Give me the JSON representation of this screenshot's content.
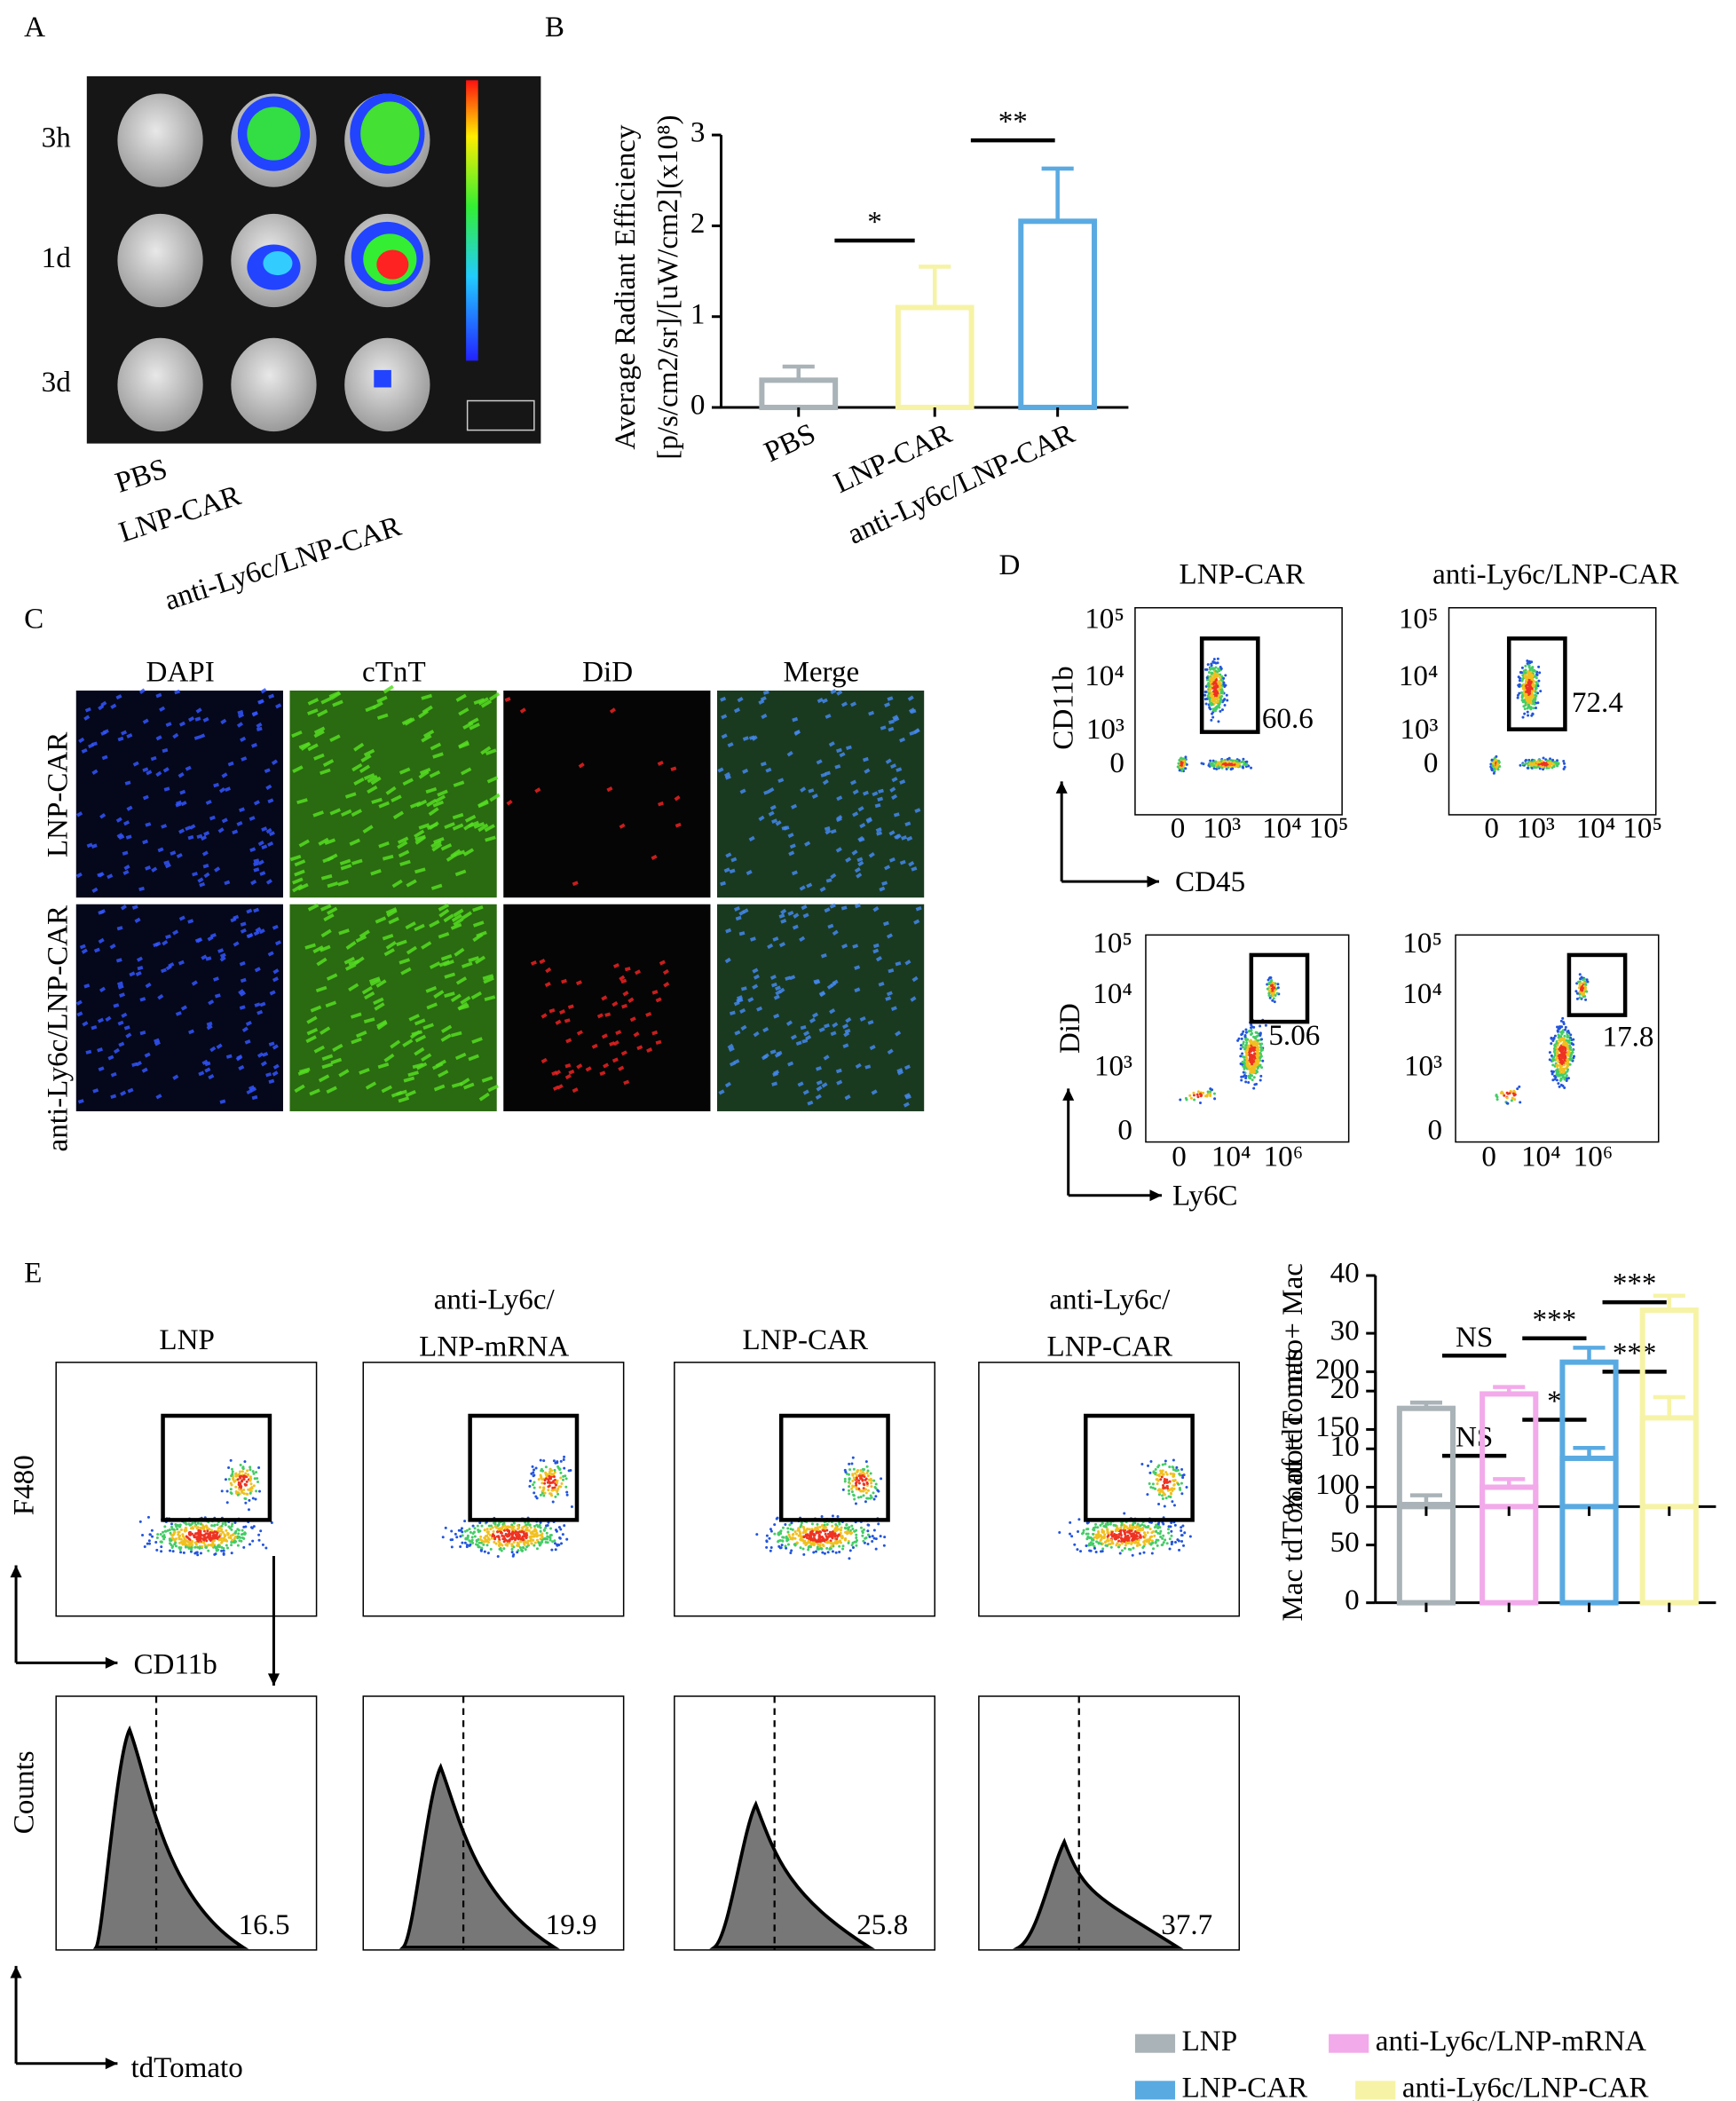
{
  "panel_labels": [
    "A",
    "B",
    "C",
    "D",
    "E"
  ],
  "panel_a": {
    "rows": [
      "3h",
      "1d",
      "3d"
    ],
    "columns": [
      "PBS",
      "LNP-CAR",
      "anti-Ly6c/LNP-CAR"
    ]
  },
  "panel_c": {
    "columns": [
      "DAPI",
      "cTnT",
      "DiD",
      "Merge"
    ],
    "rows": [
      "LNP-CAR",
      "anti-Ly6c/LNP-CAR"
    ]
  },
  "panel_d": {
    "columns": [
      "LNP-CAR",
      "anti-Ly6c/LNP-CAR"
    ],
    "top": {
      "y_label": "CD11b",
      "x_label": "CD45",
      "yticks": [
        "10⁵",
        "10⁴",
        "10³",
        "0"
      ],
      "xticks": [
        "0",
        "10³",
        "10⁴",
        "10⁵"
      ],
      "gates": [
        "60.6",
        "72.4"
      ]
    },
    "bottom": {
      "y_label": "DiD",
      "x_label": "Ly6C",
      "yticks": [
        "10⁵",
        "10⁴",
        "10³",
        "0"
      ],
      "xticks": [
        "0",
        "10⁴",
        "10⁶"
      ],
      "gates": [
        "5.06",
        "17.8"
      ]
    }
  },
  "panel_e": {
    "titles": [
      [
        "LNP"
      ],
      [
        "anti-Ly6c/",
        "LNP-mRNA"
      ],
      [
        "LNP-CAR"
      ],
      [
        "anti-Ly6c/",
        "LNP-CAR"
      ]
    ],
    "dot_y_label": "F480",
    "dot_x_label": "CD11b",
    "hist_y_label": "Counts",
    "hist_x_label": "tdTomato",
    "percents": [
      "16.5",
      "19.9",
      "25.8",
      "37.7"
    ]
  },
  "chart_data": [
    {
      "type": "bar",
      "y_label": [
        "Average  Radiant  Efficiency",
        "[p/s/cm2/sr]/[uW/cm2](x10⁸)"
      ],
      "categories": [
        "PBS",
        "LNP-CAR",
        "anti-Ly6c/LNP-CAR"
      ],
      "values": [
        0.3,
        1.1,
        2.05
      ],
      "errors": [
        0.15,
        0.45,
        0.58
      ],
      "colors": [
        "#a9b3b8",
        "#f6f3a6",
        "#5aaae2"
      ],
      "ylim": [
        0,
        3
      ],
      "yticks": [
        0,
        1,
        2,
        3
      ],
      "annotations": [
        "*",
        "**"
      ]
    },
    {
      "type": "bar",
      "y_label": "Mac tdTomato+ counts",
      "categories": [
        null,
        null,
        null,
        null
      ],
      "values": [
        85,
        100,
        125,
        160
      ],
      "errors": [
        8,
        7,
        9,
        18
      ],
      "colors": [
        "#a9b3b8",
        "#f2aaea",
        "#5aaae2",
        "#f6f3a6"
      ],
      "ylim": [
        0,
        200
      ],
      "yticks": [
        0,
        50,
        100,
        150,
        200
      ],
      "annotations": [
        "NS",
        "*",
        "***"
      ]
    },
    {
      "type": "bar",
      "y_label": "% of tdTomato+ Mac",
      "categories": [
        null,
        null,
        null,
        null
      ],
      "values": [
        17,
        19.5,
        25,
        34
      ],
      "errors": [
        1,
        1.2,
        2.5,
        2.5
      ],
      "colors": [
        "#a9b3b8",
        "#f2aaea",
        "#5aaae2",
        "#f6f3a6"
      ],
      "ylim": [
        0,
        40
      ],
      "yticks": [
        0,
        10,
        20,
        30,
        40
      ],
      "annotations": [
        "NS",
        "***",
        "***"
      ]
    }
  ],
  "legend": {
    "names": [
      "LNP",
      "anti-Ly6c/LNP-mRNA",
      "LNP-CAR",
      "anti-Ly6c/LNP-CAR"
    ],
    "colors": [
      "#a9b3b8",
      "#f2aaea",
      "#5aaae2",
      "#f6f3a6"
    ]
  }
}
